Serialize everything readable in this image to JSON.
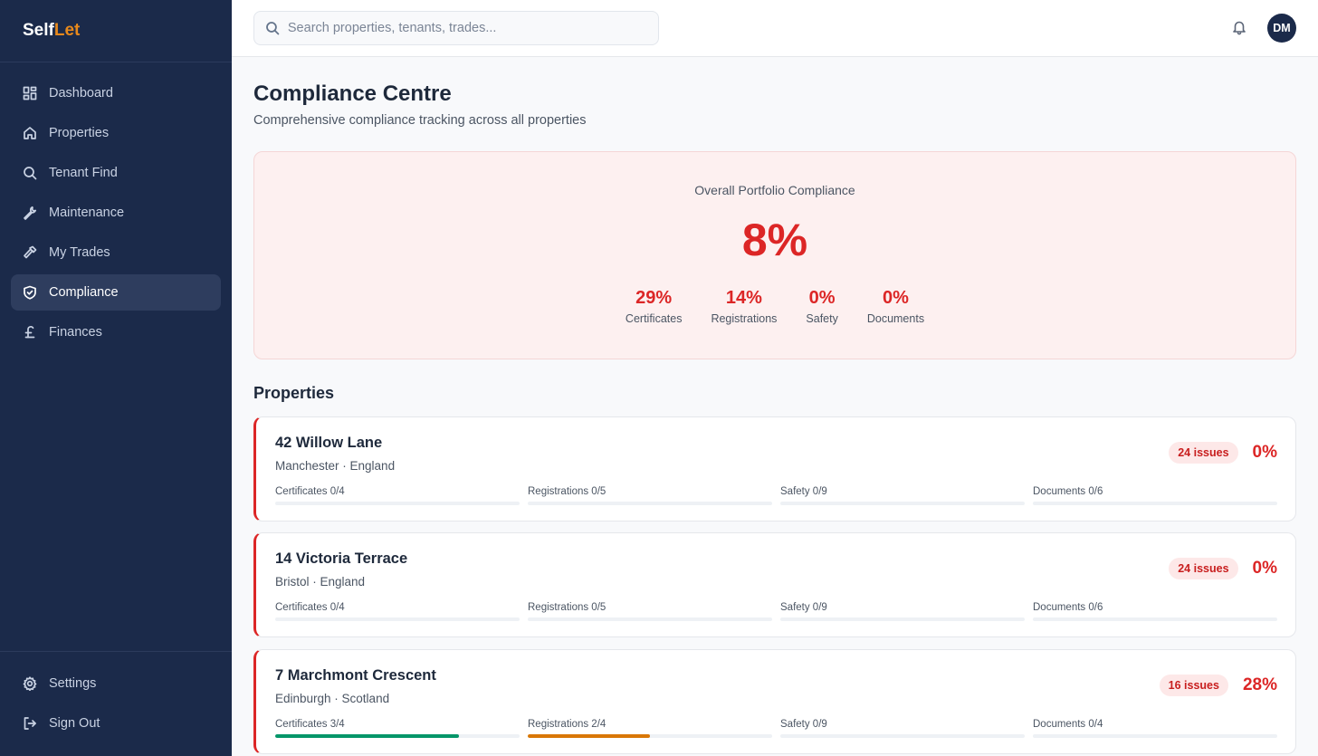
{
  "app": {
    "logo_part1": "Self",
    "logo_part2": "Let",
    "accent": "#e8891c",
    "sidebar_bg": "#1b2a4a"
  },
  "sidebar": {
    "items": [
      {
        "label": "Dashboard",
        "icon": "dashboard-icon",
        "active": false
      },
      {
        "label": "Properties",
        "icon": "home-icon",
        "active": false
      },
      {
        "label": "Tenant Find",
        "icon": "search-icon",
        "active": false
      },
      {
        "label": "Maintenance",
        "icon": "wrench-icon",
        "active": false
      },
      {
        "label": "My Trades",
        "icon": "hammer-icon",
        "active": false
      },
      {
        "label": "Compliance",
        "icon": "shield-check-icon",
        "active": true
      },
      {
        "label": "Finances",
        "icon": "pound-icon",
        "active": false
      }
    ],
    "bottom": [
      {
        "label": "Settings",
        "icon": "gear-icon"
      },
      {
        "label": "Sign Out",
        "icon": "sign-out-icon"
      }
    ]
  },
  "topbar": {
    "search_placeholder": "Search properties, tenants, trades...",
    "avatar_initials": "DM"
  },
  "page": {
    "title": "Compliance Centre",
    "subtitle": "Comprehensive compliance tracking across all properties"
  },
  "overall": {
    "label": "Overall Portfolio Compliance",
    "percent": "8%",
    "stats": [
      {
        "value": "29%",
        "label": "Certificates"
      },
      {
        "value": "14%",
        "label": "Registrations"
      },
      {
        "value": "0%",
        "label": "Safety"
      },
      {
        "value": "0%",
        "label": "Documents"
      }
    ]
  },
  "properties_section": {
    "title": "Properties"
  },
  "properties": [
    {
      "name": "42 Willow Lane",
      "location": "Manchester · England",
      "issues": "24 issues",
      "percent": "0%",
      "bars": [
        {
          "label": "Certificates 0/4",
          "fraction": 0,
          "color": "#059669"
        },
        {
          "label": "Registrations 0/5",
          "fraction": 0,
          "color": "#d97706"
        },
        {
          "label": "Safety 0/9",
          "fraction": 0,
          "color": "#059669"
        },
        {
          "label": "Documents 0/6",
          "fraction": 0,
          "color": "#059669"
        }
      ]
    },
    {
      "name": "14 Victoria Terrace",
      "location": "Bristol · England",
      "issues": "24 issues",
      "percent": "0%",
      "bars": [
        {
          "label": "Certificates 0/4",
          "fraction": 0,
          "color": "#059669"
        },
        {
          "label": "Registrations 0/5",
          "fraction": 0,
          "color": "#d97706"
        },
        {
          "label": "Safety 0/9",
          "fraction": 0,
          "color": "#059669"
        },
        {
          "label": "Documents 0/6",
          "fraction": 0,
          "color": "#059669"
        }
      ]
    },
    {
      "name": "7 Marchmont Crescent",
      "location": "Edinburgh · Scotland",
      "issues": "16 issues",
      "percent": "28%",
      "bars": [
        {
          "label": "Certificates 3/4",
          "fraction": 0.75,
          "color": "#059669"
        },
        {
          "label": "Registrations 2/4",
          "fraction": 0.5,
          "color": "#d97706"
        },
        {
          "label": "Safety 0/9",
          "fraction": 0,
          "color": "#059669"
        },
        {
          "label": "Documents 0/4",
          "fraction": 0,
          "color": "#059669"
        }
      ]
    }
  ]
}
